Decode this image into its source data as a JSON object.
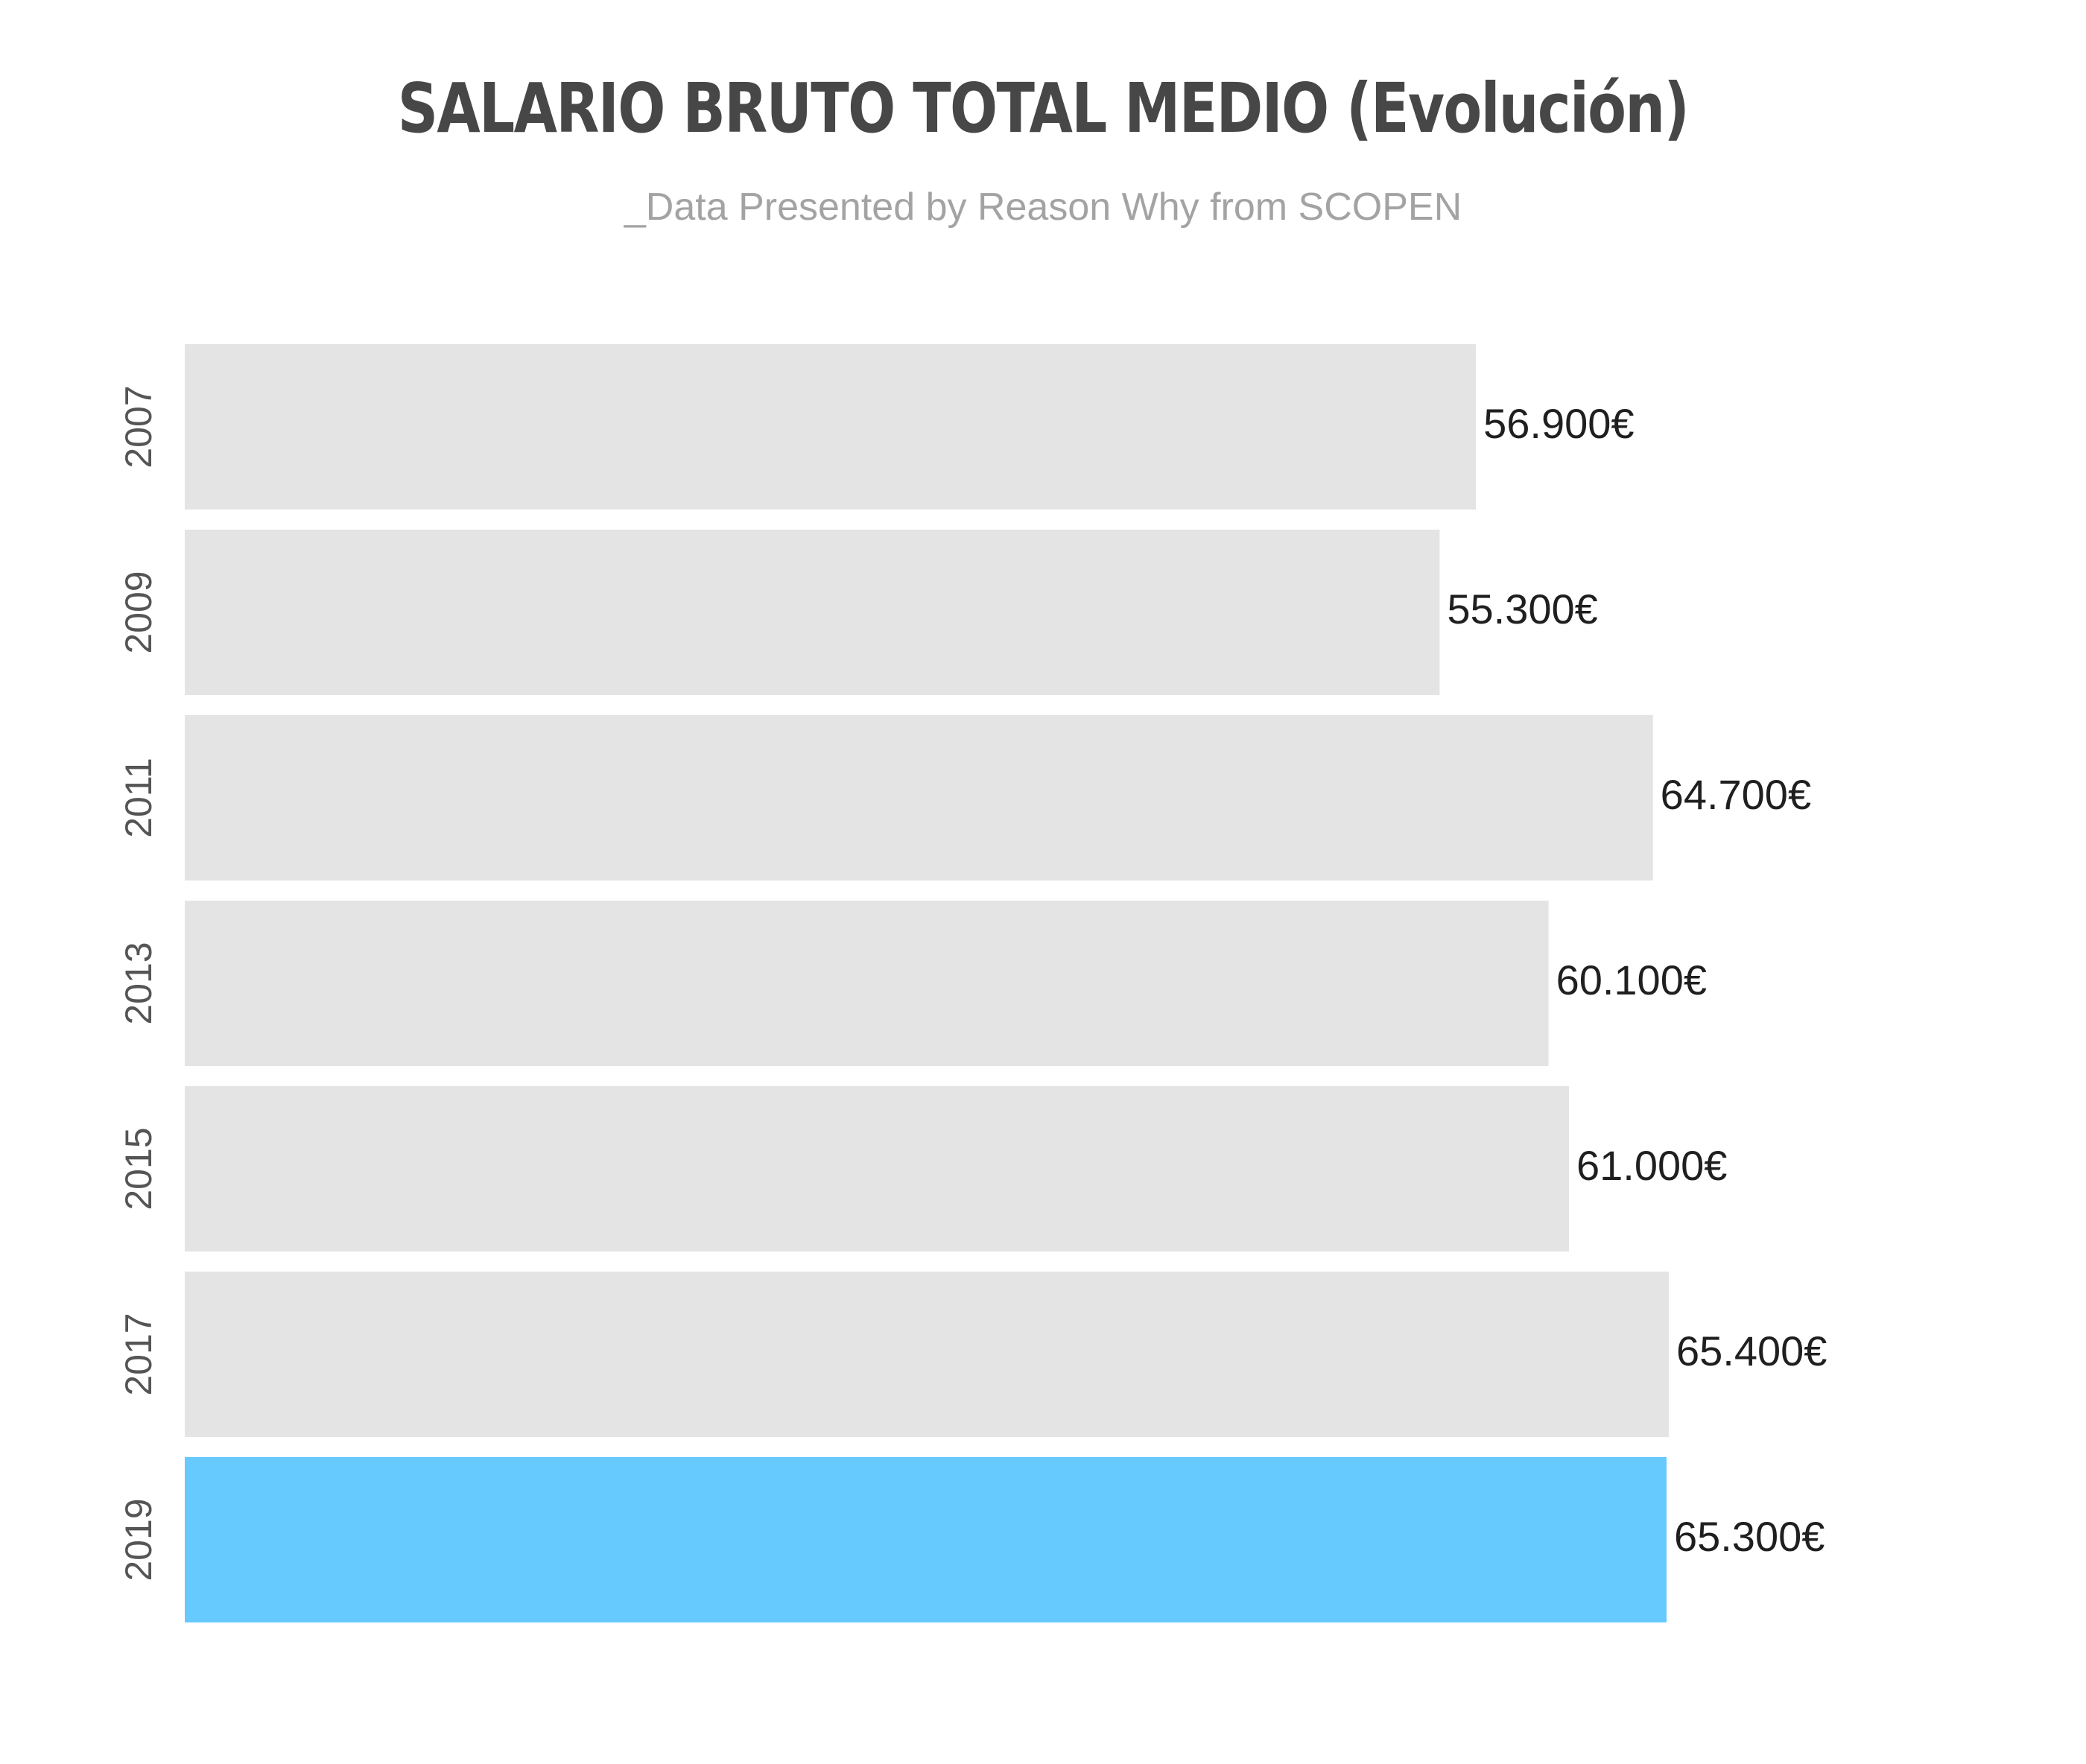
{
  "chart_data": {
    "type": "bar",
    "orientation": "horizontal",
    "title": "SALARIO BRUTO TOTAL MEDIO (Evolución)",
    "subtitle": "_Data Presented by Reason Why from SCOPEN",
    "categories": [
      "2007",
      "2009",
      "2011",
      "2013",
      "2015",
      "2017",
      "2019"
    ],
    "values": [
      56900,
      55300,
      64700,
      60100,
      61000,
      65400,
      65300
    ],
    "data_labels": [
      "56.900€",
      "55.300€",
      "64.700€",
      "60.100€",
      "61.000€",
      "65.400€",
      "65.300€"
    ],
    "colors": [
      "#e4e4e4",
      "#e4e4e4",
      "#e4e4e4",
      "#e4e4e4",
      "#e4e4e4",
      "#e4e4e4",
      "#66caff"
    ],
    "highlight_category": "2019",
    "xlim": [
      0,
      65400
    ],
    "grid": false,
    "legend": false
  }
}
